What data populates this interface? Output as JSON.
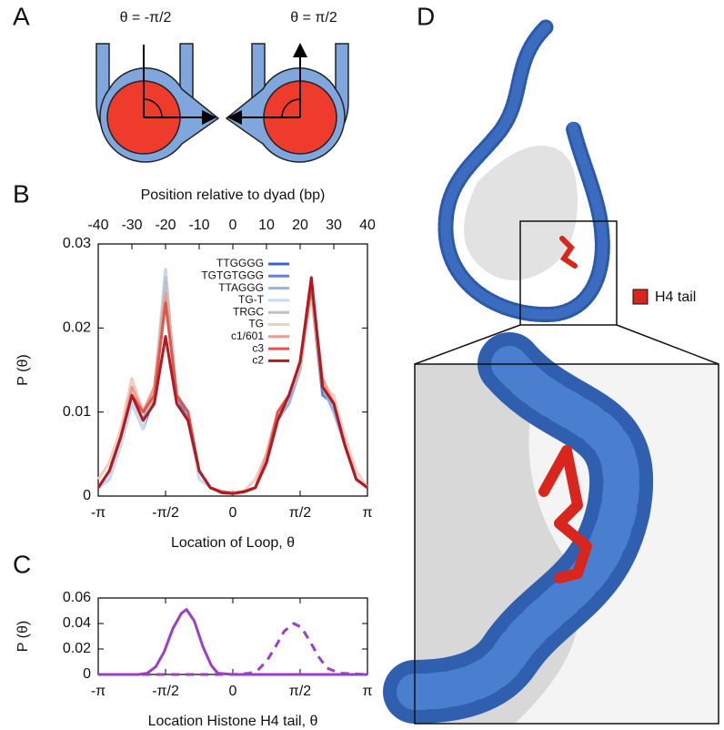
{
  "panel_labels": [
    "A",
    "B",
    "C",
    "D"
  ],
  "diagram_a": {
    "left_label": "θ = -π/2",
    "right_label": "θ = π/2"
  },
  "panel_d": {
    "legend": "H4 tail"
  },
  "chart_data": [
    {
      "type": "line",
      "x2label": "Position relative to dyad (bp)",
      "xlabel": "Location of Loop, θ",
      "ylabel": "P (θ)",
      "xlim": [
        -3.1416,
        3.1416
      ],
      "xticks": [
        {
          "value": -3.1416,
          "label": "-π"
        },
        {
          "value": -1.5708,
          "label": "-π/2"
        },
        0,
        {
          "value": 1.5708,
          "label": "π/2"
        },
        {
          "value": 3.1416,
          "label": "π"
        }
      ],
      "x2lim": [
        -40,
        40
      ],
      "x2ticks": [
        -40,
        -30,
        -20,
        -10,
        0,
        10,
        20,
        30,
        40
      ],
      "ylim": [
        0,
        0.03
      ],
      "yticks": [
        0,
        0.01,
        0.02,
        0.03
      ],
      "legend": "top",
      "x": [
        -3.1416,
        -2.8798,
        -2.618,
        -2.3562,
        -2.0944,
        -1.8326,
        -1.5708,
        -1.309,
        -1.0472,
        -0.7854,
        -0.5236,
        -0.2618,
        0,
        0.2618,
        0.5236,
        0.7854,
        1.0472,
        1.309,
        1.5708,
        1.8326,
        2.0944,
        2.3562,
        2.618,
        2.8798,
        3.1416
      ],
      "series": [
        {
          "name": "TTGGGG",
          "color": "#3d63c9",
          "values": [
            0.001,
            0.002,
            0.006,
            0.011,
            0.008,
            0.012,
            0.027,
            0.011,
            0.009,
            0.003,
            0.001,
            0.0005,
            0.0003,
            0.0005,
            0.001,
            0.004,
            0.009,
            0.012,
            0.015,
            0.025,
            0.013,
            0.011,
            0.006,
            0.002,
            0.001
          ]
        },
        {
          "name": "TGTGTGGG",
          "color": "#5f83d8",
          "values": [
            0.001,
            0.003,
            0.007,
            0.012,
            0.009,
            0.013,
            0.026,
            0.012,
            0.009,
            0.003,
            0.001,
            0.0005,
            0.0003,
            0.0006,
            0.001,
            0.004,
            0.01,
            0.012,
            0.016,
            0.024,
            0.012,
            0.011,
            0.006,
            0.002,
            0.001
          ]
        },
        {
          "name": "TTAGGG",
          "color": "#92b2e8",
          "values": [
            0.001,
            0.003,
            0.007,
            0.012,
            0.009,
            0.012,
            0.025,
            0.012,
            0.01,
            0.003,
            0.001,
            0.0006,
            0.0004,
            0.0006,
            0.001,
            0.004,
            0.009,
            0.011,
            0.015,
            0.025,
            0.013,
            0.01,
            0.006,
            0.002,
            0.001
          ]
        },
        {
          "name": "TG-T",
          "color": "#c8daf1",
          "values": [
            0.001,
            0.002,
            0.006,
            0.011,
            0.008,
            0.013,
            0.027,
            0.011,
            0.009,
            0.002,
            0.001,
            0.0004,
            0.0003,
            0.0005,
            0.001,
            0.005,
            0.01,
            0.012,
            0.016,
            0.024,
            0.014,
            0.011,
            0.007,
            0.002,
            0.001
          ]
        },
        {
          "name": "TRGC",
          "color": "#c0c0c0",
          "values": [
            0.001,
            0.003,
            0.007,
            0.012,
            0.009,
            0.012,
            0.026,
            0.012,
            0.01,
            0.003,
            0.001,
            0.0005,
            0.0004,
            0.0005,
            0.001,
            0.004,
            0.009,
            0.012,
            0.015,
            0.025,
            0.013,
            0.011,
            0.006,
            0.002,
            0.001
          ]
        },
        {
          "name": "TG",
          "color": "#f3cdc1",
          "values": [
            0.002,
            0.004,
            0.008,
            0.014,
            0.01,
            0.013,
            0.024,
            0.012,
            0.01,
            0.003,
            0.001,
            0.0006,
            0.0004,
            0.0006,
            0.002,
            0.005,
            0.01,
            0.012,
            0.016,
            0.024,
            0.013,
            0.012,
            0.007,
            0.003,
            0.001
          ]
        },
        {
          "name": "c1/601",
          "color": "#ee9c8a",
          "values": [
            0.001,
            0.003,
            0.007,
            0.013,
            0.01,
            0.013,
            0.024,
            0.012,
            0.01,
            0.003,
            0.001,
            0.0005,
            0.0004,
            0.0006,
            0.001,
            0.005,
            0.01,
            0.012,
            0.016,
            0.025,
            0.014,
            0.011,
            0.006,
            0.002,
            0.001
          ]
        },
        {
          "name": "c3",
          "color": "#e0574a",
          "values": [
            0.001,
            0.003,
            0.007,
            0.012,
            0.01,
            0.012,
            0.023,
            0.012,
            0.01,
            0.003,
            0.001,
            0.0005,
            0.0003,
            0.0005,
            0.001,
            0.004,
            0.01,
            0.012,
            0.016,
            0.025,
            0.013,
            0.011,
            0.006,
            0.002,
            0.001
          ]
        },
        {
          "name": "c2",
          "color": "#b01a22",
          "values": [
            0.001,
            0.003,
            0.007,
            0.012,
            0.009,
            0.011,
            0.019,
            0.011,
            0.009,
            0.003,
            0.001,
            0.0004,
            0.0003,
            0.0005,
            0.001,
            0.004,
            0.009,
            0.012,
            0.016,
            0.026,
            0.013,
            0.011,
            0.006,
            0.002,
            0.001
          ]
        }
      ]
    },
    {
      "type": "line",
      "xlabel": "Location Histone H4 tail, θ",
      "ylabel": "P (θ)",
      "xlim": [
        -3.1416,
        3.1416
      ],
      "xticks": [
        {
          "value": -3.1416,
          "label": "-π"
        },
        {
          "value": -1.5708,
          "label": "-π/2"
        },
        0,
        {
          "value": 1.5708,
          "label": "π/2"
        },
        {
          "value": 3.1416,
          "label": "π"
        }
      ],
      "ylim": [
        0,
        0.06
      ],
      "yticks": [
        0,
        0.02,
        0.04,
        0.06
      ],
      "x": [
        -3.14,
        -2.5,
        -2.2,
        -2.0,
        -1.8,
        -1.6,
        -1.4,
        -1.2,
        -1.08,
        -0.9,
        -0.7,
        -0.5,
        -0.35,
        0,
        0.4,
        0.6,
        0.8,
        1.0,
        1.2,
        1.42,
        1.6,
        1.8,
        2.0,
        2.2,
        2.5,
        3.14
      ],
      "series": [
        {
          "color": "#9b3fc4",
          "linestyle": "solid",
          "values": [
            0,
            0,
            0,
            0.001,
            0.006,
            0.018,
            0.036,
            0.048,
            0.051,
            0.042,
            0.022,
            0.007,
            0.001,
            0,
            0,
            0,
            0,
            0,
            0,
            0,
            0,
            0,
            0,
            0,
            0,
            0
          ]
        },
        {
          "color": "#9b3fc4",
          "linestyle": "dashed",
          "values": [
            0,
            0,
            0,
            0,
            0,
            0,
            0,
            0,
            0,
            0,
            0,
            0,
            0,
            0,
            0.001,
            0.004,
            0.011,
            0.022,
            0.034,
            0.04,
            0.037,
            0.026,
            0.014,
            0.005,
            0.001,
            0
          ]
        }
      ]
    }
  ]
}
